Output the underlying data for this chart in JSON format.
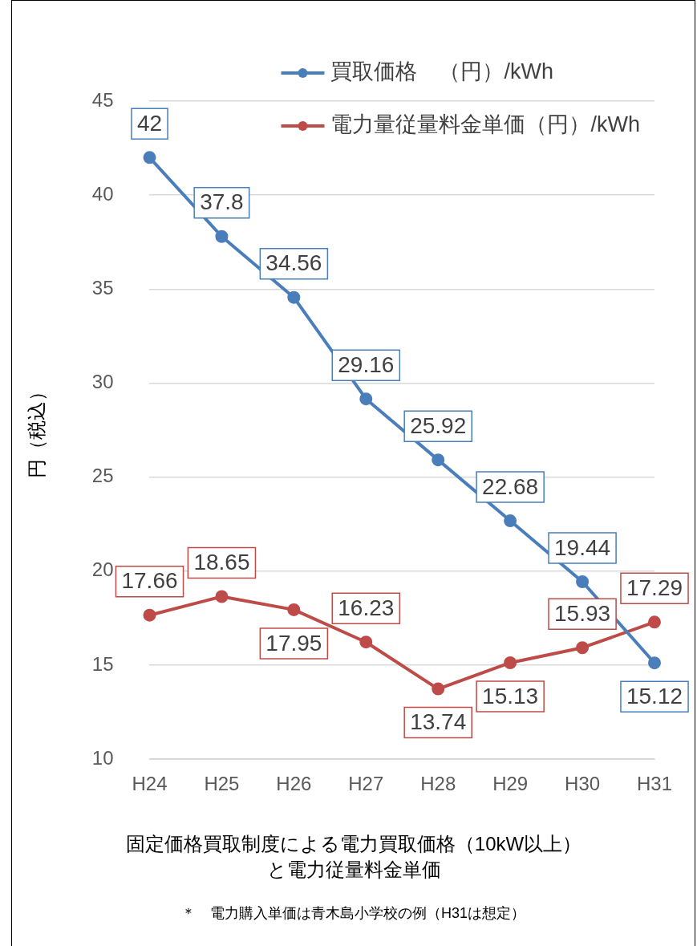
{
  "chart_data": {
    "type": "line",
    "title": "固定価格買取制度による電力買取価格（10kW以上）と電力従量料金単価",
    "ylabel": "円（税込）",
    "annotations": [
      "＊　電力購入単価は青木島小学校の例（H31は想定）"
    ],
    "categories": [
      "H24",
      "H25",
      "H26",
      "H27",
      "H28",
      "H29",
      "H30",
      "H31"
    ],
    "series": [
      {
        "name": "買取価格　（円）/kWh",
        "color": "#4a7ebb",
        "values": [
          42,
          37.8,
          34.56,
          29.16,
          25.92,
          22.68,
          19.44,
          15.12
        ]
      },
      {
        "name": "電力量従量料金単価（円）/kWh",
        "color": "#be4b48",
        "values": [
          17.66,
          18.65,
          17.95,
          16.23,
          13.74,
          15.13,
          15.93,
          17.29
        ]
      }
    ],
    "ylim": [
      10,
      45
    ],
    "yticks": [
      10,
      15,
      20,
      25,
      30,
      35,
      40,
      45
    ],
    "grid": "y",
    "legend": "top right",
    "marker": "circle",
    "line_style": "solid",
    "data_labels": true
  }
}
